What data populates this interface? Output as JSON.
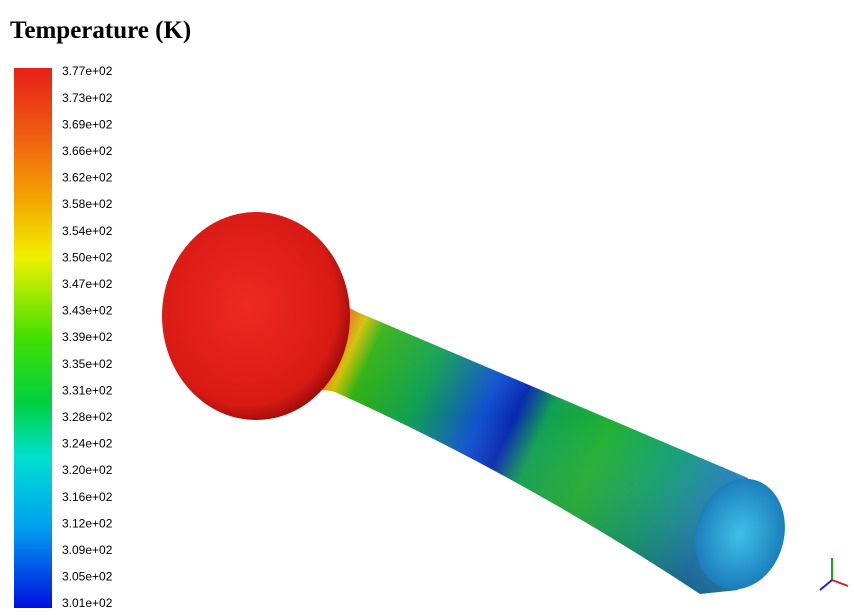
{
  "title": "Temperature (K)",
  "colorbar": {
    "labels": [
      "3.77e+02",
      "3.73e+02",
      "3.69e+02",
      "3.66e+02",
      "3.62e+02",
      "3.58e+02",
      "3.54e+02",
      "3.50e+02",
      "3.47e+02",
      "3.43e+02",
      "3.39e+02",
      "3.35e+02",
      "3.31e+02",
      "3.28e+02",
      "3.24e+02",
      "3.20e+02",
      "3.16e+02",
      "3.12e+02",
      "3.09e+02",
      "3.05e+02",
      "3.01e+02"
    ]
  }
}
